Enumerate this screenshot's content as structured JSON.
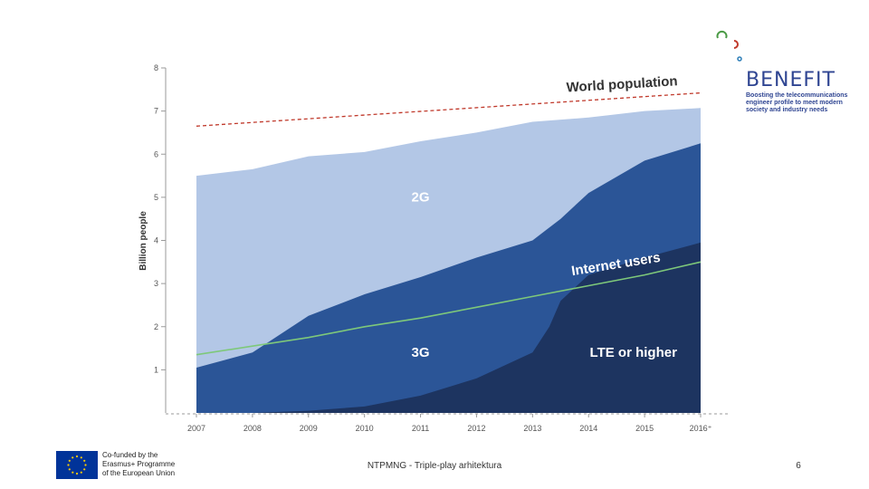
{
  "chart_data": {
    "type": "area",
    "x": [
      "2007",
      "2008",
      "2009",
      "2010",
      "2011",
      "2012",
      "2013",
      "2014",
      "2015",
      "2016"
    ],
    "x_tick_labels": [
      "2007",
      "2008",
      "2009",
      "2010",
      "2011",
      "2012",
      "2013",
      "2014",
      "2015",
      "2016⁺"
    ],
    "ylabel": "Billion people",
    "ylim": [
      0,
      8
    ],
    "yticks": [
      "1",
      "2",
      "3",
      "4",
      "5",
      "6",
      "7",
      "8"
    ],
    "series": [
      {
        "name": "2G",
        "color": "#b3c7e6",
        "x": [
          2007,
          2008,
          2009,
          2010,
          2011,
          2012,
          2013,
          2014,
          2015,
          2016
        ],
        "values": [
          5.5,
          5.65,
          5.95,
          6.05,
          6.3,
          6.5,
          6.75,
          6.85,
          7.0,
          7.07
        ]
      },
      {
        "name": "3G",
        "color": "#2b5597",
        "x": [
          2007,
          2008,
          2009,
          2010,
          2011,
          2012,
          2013,
          2013.5,
          2014,
          2015,
          2016
        ],
        "values": [
          1.05,
          1.4,
          2.25,
          2.75,
          3.15,
          3.6,
          4.0,
          4.5,
          5.1,
          5.85,
          6.25
        ]
      },
      {
        "name": "LTE or higher",
        "color": "#1d3460",
        "x": [
          2007,
          2008,
          2009,
          2010,
          2011,
          2012,
          2013,
          2013.3,
          2013.5,
          2014,
          2015,
          2016
        ],
        "values": [
          0,
          0,
          0.05,
          0.15,
          0.4,
          0.8,
          1.4,
          2.0,
          2.6,
          3.2,
          3.6,
          3.95
        ]
      }
    ],
    "lines": [
      {
        "name": "Internet users",
        "label": "Internet users",
        "color": "#7ec87a",
        "style": "solid",
        "x": [
          2007,
          2008,
          2009,
          2010,
          2011,
          2012,
          2013,
          2014,
          2015,
          2016
        ],
        "values": [
          1.35,
          1.55,
          1.75,
          2.0,
          2.2,
          2.45,
          2.7,
          2.95,
          3.2,
          3.5
        ]
      },
      {
        "name": "World population",
        "label": "World population",
        "color": "#c0392b",
        "style": "dashed",
        "x": [
          2007,
          2016
        ],
        "values": [
          6.65,
          7.42
        ]
      }
    ],
    "area_labels": [
      {
        "text": "2G",
        "x": 2011,
        "y": 4.9
      },
      {
        "text": "3G",
        "x": 2011,
        "y": 1.3
      },
      {
        "text": "LTE or higher",
        "x": 2014.8,
        "y": 1.3
      }
    ]
  },
  "branding": {
    "benefit_word": "BENEFIT",
    "benefit_tagline": "Boosting the telecommunications engineer profile to meet modern society and industry needs",
    "eu_text": [
      "Co-funded by the",
      "Erasmus+ Programme",
      "of the European Union"
    ],
    "eu_flag_color": "#003399",
    "eu_star_color": "#ffcc00"
  },
  "footer": {
    "title": "NTPMNG - Triple-play arhitektura",
    "page_number": "6"
  }
}
